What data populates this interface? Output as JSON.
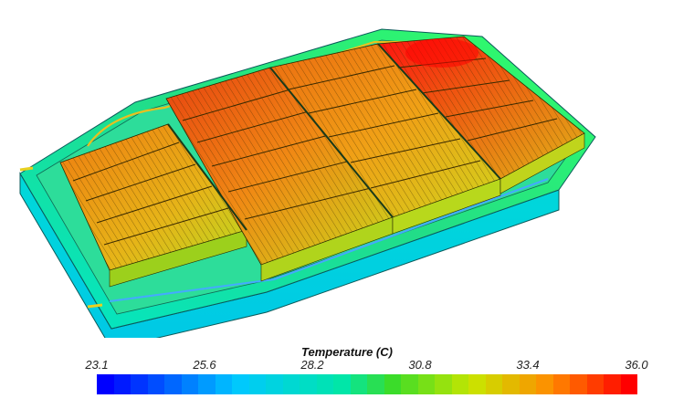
{
  "legend": {
    "title": "Temperature (C)",
    "ticks": [
      "23.1",
      "25.6",
      "28.2",
      "30.8",
      "33.4",
      "36.0"
    ],
    "min": 23.1,
    "max": 36.0,
    "bands": 32
  },
  "colors": {
    "low": "#0000ff",
    "high": "#ff0000"
  }
}
